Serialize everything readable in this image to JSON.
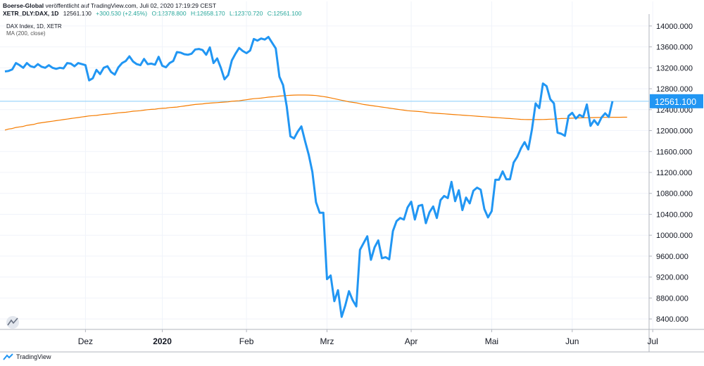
{
  "header": {
    "publisher": "Boerse-Global",
    "published_text": "veröffentlicht auf TradingView.com, Juli 02, 2020 17:19:29 CEST",
    "symbol": "XETR_DLY:DAX, 1D",
    "last": "12561.100",
    "change": "+300.530 (+2.45%)",
    "O": "O:12378.800",
    "H": "H:12658.170",
    "L": "L:12370.720",
    "C": "C:12561.100"
  },
  "legend": {
    "series_label": "DAX Index, 1D, XETR",
    "ma_label": "MA (200, close)"
  },
  "footer": {
    "brand": "TradingView"
  },
  "colors": {
    "price": "#2196f3",
    "ma": "#f57c00",
    "last_badge": "#2196f3",
    "crosshair": "#87cefa"
  },
  "chart_data": {
    "type": "line",
    "ylim": [
      8200,
      14200
    ],
    "yticks": [
      8400,
      8800,
      9200,
      9600,
      10000,
      10400,
      10800,
      11200,
      11600,
      12000,
      12400,
      12800,
      13200,
      13600,
      14000
    ],
    "ytick_labels": [
      "8400.000",
      "8800.000",
      "9200.000",
      "9600.000",
      "10000.000",
      "10400.000",
      "10800.000",
      "11200.000",
      "11600.000",
      "12000.000",
      "12400.000",
      "12800.000",
      "13200.000",
      "13600.000",
      "14000.000"
    ],
    "x_labels": [
      {
        "text": "Dez",
        "i": 22
      },
      {
        "text": "2020",
        "i": 43,
        "bold": true
      },
      {
        "text": "Feb",
        "i": 66
      },
      {
        "text": "Mrz",
        "i": 88
      },
      {
        "text": "Apr",
        "i": 111
      },
      {
        "text": "Mai",
        "i": 133
      },
      {
        "text": "Jun",
        "i": 155
      },
      {
        "text": "Jul",
        "i": 177
      }
    ],
    "last_value": 12561.1,
    "last_label": "12561.100",
    "series": [
      {
        "name": "DAX Index, 1D, XETR",
        "values": [
          13130,
          13140,
          13170,
          13290,
          13250,
          13200,
          13290,
          13230,
          13210,
          13270,
          13220,
          13200,
          13250,
          13200,
          13180,
          13200,
          13190,
          13290,
          13280,
          13230,
          13290,
          13270,
          13250,
          12960,
          13000,
          13160,
          13080,
          13200,
          13230,
          13120,
          13070,
          13210,
          13290,
          13330,
          13420,
          13320,
          13270,
          13250,
          13370,
          13270,
          13280,
          13260,
          13410,
          13240,
          13210,
          13290,
          13330,
          13500,
          13490,
          13460,
          13450,
          13470,
          13550,
          13560,
          13540,
          13450,
          13590,
          13290,
          13380,
          13200,
          12980,
          13060,
          13340,
          13470,
          13580,
          13520,
          13480,
          13530,
          13750,
          13720,
          13760,
          13740,
          13790,
          13680,
          13570,
          13030,
          12870,
          12460,
          11890,
          11850,
          11980,
          12080,
          11800,
          11540,
          11210,
          10630,
          10430,
          10430,
          9160,
          9230,
          8740,
          8950,
          8440,
          8660,
          8930,
          8760,
          8640,
          9720,
          9850,
          9980,
          9530,
          9770,
          9900,
          9560,
          9580,
          9540,
          10080,
          10270,
          10330,
          10300,
          10530,
          10640,
          10300,
          10560,
          10580,
          10230,
          10440,
          10550,
          10330,
          10670,
          10750,
          10710,
          11020,
          10650,
          10860,
          10480,
          10720,
          10610,
          10850,
          10910,
          10870,
          10500,
          10340,
          10460,
          11060,
          11060,
          11220,
          11070,
          11070,
          11390,
          11500,
          11660,
          11780,
          11640,
          12020,
          12520,
          12430,
          12900,
          12850,
          12600,
          12520,
          11960,
          11940,
          11900,
          12280,
          12340,
          12230,
          12300,
          12260,
          12500,
          12090,
          12200,
          12110,
          12250,
          12330,
          12260,
          12561.1
        ]
      },
      {
        "name": "MA (200, close)",
        "values": [
          12010,
          12030,
          12040,
          12060,
          12070,
          12080,
          12100,
          12110,
          12120,
          12140,
          12150,
          12160,
          12170,
          12180,
          12190,
          12200,
          12210,
          12220,
          12230,
          12240,
          12250,
          12260,
          12270,
          12280,
          12285,
          12290,
          12300,
          12310,
          12315,
          12320,
          12330,
          12340,
          12345,
          12350,
          12360,
          12370,
          12375,
          12380,
          12390,
          12400,
          12405,
          12410,
          12420,
          12425,
          12430,
          12440,
          12445,
          12450,
          12460,
          12470,
          12480,
          12490,
          12500,
          12505,
          12510,
          12520,
          12525,
          12530,
          12535,
          12540,
          12545,
          12550,
          12560,
          12565,
          12570,
          12580,
          12590,
          12600,
          12610,
          12615,
          12620,
          12630,
          12640,
          12645,
          12650,
          12660,
          12665,
          12670,
          12675,
          12678,
          12680,
          12680,
          12680,
          12678,
          12675,
          12670,
          12660,
          12650,
          12640,
          12625,
          12610,
          12595,
          12580,
          12565,
          12550,
          12540,
          12530,
          12515,
          12500,
          12490,
          12480,
          12470,
          12460,
          12450,
          12440,
          12430,
          12420,
          12410,
          12400,
          12390,
          12380,
          12375,
          12370,
          12365,
          12360,
          12350,
          12340,
          12335,
          12330,
          12325,
          12320,
          12315,
          12310,
          12305,
          12300,
          12295,
          12290,
          12285,
          12280,
          12275,
          12270,
          12265,
          12260,
          12255,
          12250,
          12245,
          12240,
          12235,
          12230,
          12225,
          12220,
          12215,
          12212,
          12210,
          12210,
          12210,
          12210,
          12212,
          12215,
          12218,
          12220,
          12225,
          12230,
          12232,
          12235,
          12237,
          12240,
          12242,
          12244,
          12246,
          12248,
          12250,
          12251,
          12252,
          12253,
          12254,
          12255,
          12255,
          12255,
          12256,
          12256
        ]
      }
    ],
    "grid": true,
    "legend_position": "top-left"
  }
}
